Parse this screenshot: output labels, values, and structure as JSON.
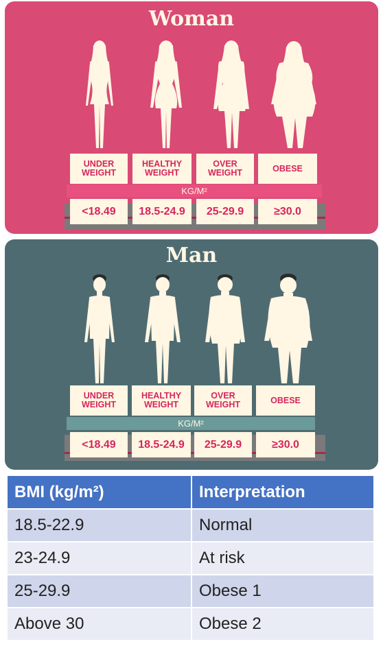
{
  "woman_panel": {
    "title": "Woman",
    "categories": [
      {
        "line1": "UNDER",
        "line2": "WEIGHT"
      },
      {
        "line1": "HEALTHY",
        "line2": "WEIGHT"
      },
      {
        "line1": "OVER",
        "line2": "WEIGHT"
      },
      {
        "line1": "OBESE",
        "line2": ""
      }
    ],
    "unit": "KG/M²",
    "ranges": [
      "<18.49",
      "18.5-24.9",
      "25-29.9",
      "≥30.0"
    ]
  },
  "man_panel": {
    "title": "Man",
    "categories": [
      {
        "line1": "UNDER",
        "line2": "WEIGHT"
      },
      {
        "line1": "HEALTHY",
        "line2": "WEIGHT"
      },
      {
        "line1": "OVER",
        "line2": "WEIGHT"
      },
      {
        "line1": "OBESE",
        "line2": ""
      }
    ],
    "unit": "KG/M²",
    "ranges": [
      "<18.49",
      "18.5-24.9",
      "25-29.9",
      "≥30.0"
    ]
  },
  "colors": {
    "woman_bg": "#d94a75",
    "man_bg": "#4f6b72",
    "cream": "#fff6e3",
    "label_red": "#d6255c",
    "woman_unit_bar": "#e8507f",
    "man_unit_bar": "#6a9a9a",
    "table_header": "#4472c4",
    "table_row_dark": "#cfd5ea",
    "table_row_light": "#e9ebf5"
  },
  "table": {
    "headers": [
      "BMI (kg/m²)",
      "Interpretation"
    ],
    "rows": [
      [
        "18.5-22.9",
        "Normal"
      ],
      [
        "23-24.9",
        "At risk"
      ],
      [
        "25-29.9",
        "Obese 1"
      ],
      [
        "Above 30",
        "Obese 2"
      ]
    ]
  }
}
